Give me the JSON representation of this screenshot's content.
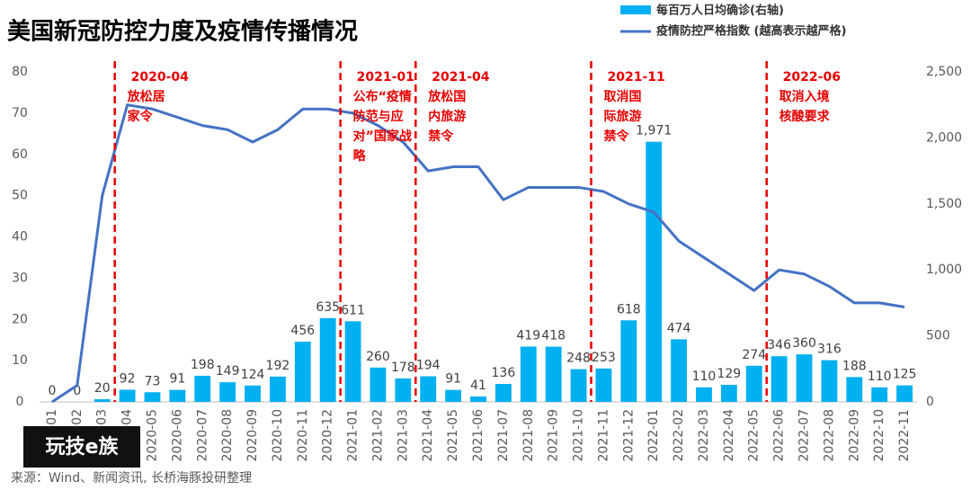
{
  "chart_data": {
    "type": "bar-line",
    "title": "美国新冠防控力度及疫情传播情况",
    "source": "来源：Wind、新闻资讯, 长桥海豚投研整理",
    "logo": "玩技e族",
    "categories": [
      "2020-01",
      "2020-02",
      "2020-03",
      "2020-04",
      "2020-05",
      "2020-06",
      "2020-07",
      "2020-08",
      "2020-09",
      "2020-10",
      "2020-11",
      "2020-12",
      "2021-01",
      "2021-02",
      "2021-03",
      "2021-04",
      "2021-05",
      "2021-06",
      "2021-07",
      "2021-08",
      "2021-09",
      "2021-10",
      "2021-11",
      "2021-12",
      "2022-01",
      "2022-02",
      "2022-03",
      "2022-04",
      "2022-05",
      "2022-06",
      "2022-07",
      "2022-08",
      "2022-09",
      "2022-10",
      "2022-11"
    ],
    "series": [
      {
        "name": "每百万人日均确诊(右轴)",
        "type": "bar",
        "axis": "y2",
        "color": "#00b0f0",
        "values": [
          0,
          0,
          20,
          92,
          73,
          91,
          198,
          149,
          124,
          192,
          456,
          635,
          611,
          260,
          178,
          194,
          91,
          41,
          136,
          419,
          418,
          248,
          253,
          618,
          1971,
          474,
          110,
          129,
          274,
          346,
          360,
          316,
          188,
          110,
          125
        ],
        "value_labels": [
          "0",
          "0",
          "20",
          "92",
          "73",
          "91",
          "198",
          "149",
          "124",
          "192",
          "456",
          "635",
          "611",
          "260",
          "178",
          "194",
          "91",
          "41",
          "136",
          "419",
          "418",
          "248",
          "253",
          "618",
          "1,971",
          "474",
          "110",
          "129",
          "274",
          "346",
          "360",
          "316",
          "188",
          "110",
          "125"
        ]
      },
      {
        "name": "疫情防控严格指数 (越高表示越严格)",
        "type": "line",
        "axis": "y",
        "color": "#4472c4",
        "values": [
          0,
          4,
          50,
          72,
          71,
          69,
          67,
          66,
          63,
          66,
          71,
          71,
          70,
          67,
          63,
          56,
          57,
          57,
          49,
          52,
          52,
          52,
          51,
          48,
          46,
          39,
          35,
          31,
          27,
          32,
          31,
          28,
          24,
          24,
          23
        ]
      }
    ],
    "ylim": [
      0,
      80
    ],
    "yticks": [
      0,
      10,
      20,
      30,
      40,
      50,
      60,
      70,
      80
    ],
    "y2lim": [
      0,
      2500
    ],
    "y2ticks": [
      0,
      {
        "value": 500,
        "label": "500"
      },
      {
        "value": 1000,
        "label": "1,000"
      },
      {
        "value": 1500,
        "label": "1,500"
      },
      {
        "value": 2000,
        "label": "2,000"
      },
      {
        "value": 2500,
        "label": "2,500"
      }
    ],
    "annotations": [
      {
        "category": "2020-04",
        "lines": [
          "放松居",
          "家令"
        ]
      },
      {
        "category": "2021-01",
        "lines": [
          "公布“疫情",
          "防范与应",
          "对”国家战",
          "略"
        ]
      },
      {
        "category": "2021-04",
        "lines": [
          "放松国",
          "内旅游",
          "禁令"
        ]
      },
      {
        "category": "2021-11",
        "lines": [
          "取消国",
          "际旅游",
          "禁令"
        ]
      },
      {
        "category": "2022-06",
        "lines": [
          "取消入境",
          "核酸要求"
        ]
      }
    ]
  }
}
